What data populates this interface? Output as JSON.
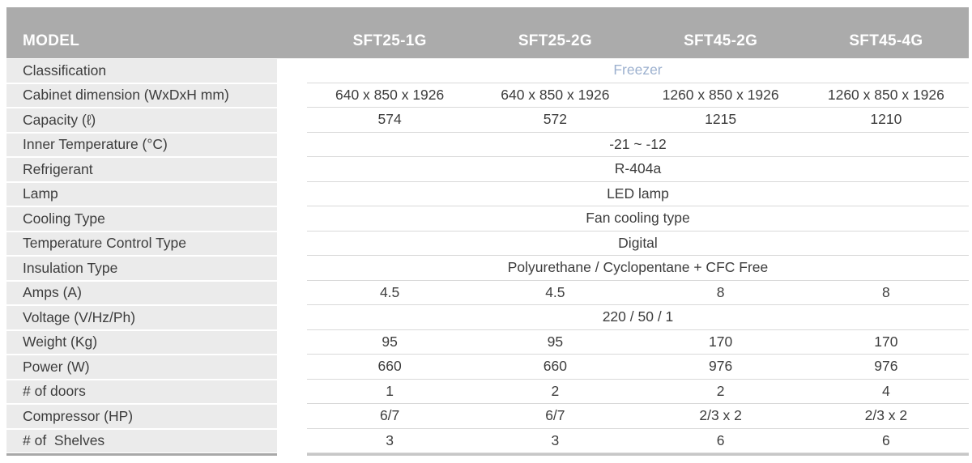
{
  "table": {
    "header": {
      "model_label": "MODEL",
      "models": [
        "SFT25-1G",
        "SFT25-2G",
        "SFT45-2G",
        "SFT45-4G"
      ]
    },
    "rows": [
      {
        "label": "Classification",
        "span": "Freezer"
      },
      {
        "label": "Cabinet dimension (WxDxH mm)",
        "values": [
          "640 x 850 x 1926",
          "640 x 850 x 1926",
          "1260 x 850 x 1926",
          "1260 x 850 x 1926"
        ]
      },
      {
        "label": "Capacity (ℓ)",
        "values": [
          "574",
          "572",
          "1215",
          "1210"
        ]
      },
      {
        "label": "Inner Temperature (°C)",
        "span": "-21 ~ -12"
      },
      {
        "label": "Refrigerant",
        "span": "R-404a"
      },
      {
        "label": "Lamp",
        "span": "LED lamp"
      },
      {
        "label": "Cooling Type",
        "span": "Fan cooling type"
      },
      {
        "label": "Temperature Control Type",
        "span": "Digital"
      },
      {
        "label": "Insulation Type",
        "span": "Polyurethane / Cyclopentane + CFC Free"
      },
      {
        "label": "Amps (A)",
        "values": [
          "4.5",
          "4.5",
          "8",
          "8"
        ]
      },
      {
        "label": "Voltage (V/Hz/Ph)",
        "span": "220 / 50 / 1"
      },
      {
        "label": "Weight (Kg)",
        "values": [
          "95",
          "95",
          "170",
          "170"
        ]
      },
      {
        "label": "Power (W)",
        "values": [
          "660",
          "660",
          "976",
          "976"
        ]
      },
      {
        "label": "# of doors",
        "values": [
          "1",
          "2",
          "2",
          "4"
        ]
      },
      {
        "label": "Compressor (HP)",
        "values": [
          "6/7",
          "6/7",
          "2/3 x 2",
          "2/3 x 2"
        ]
      },
      {
        "label": "# of  Shelves",
        "values": [
          "3",
          "3",
          "6",
          "6"
        ]
      }
    ],
    "colors": {
      "header_bg": "#ababab",
      "header_text": "#ffffff",
      "label_bg": "#ebebeb",
      "body_text": "#3d3d3d",
      "classification_text": "#9db1cf",
      "row_divider": "#d9d9d9",
      "bottom_border_label": "#a8a8a8",
      "bottom_border_data": "#c7c7c7"
    }
  }
}
